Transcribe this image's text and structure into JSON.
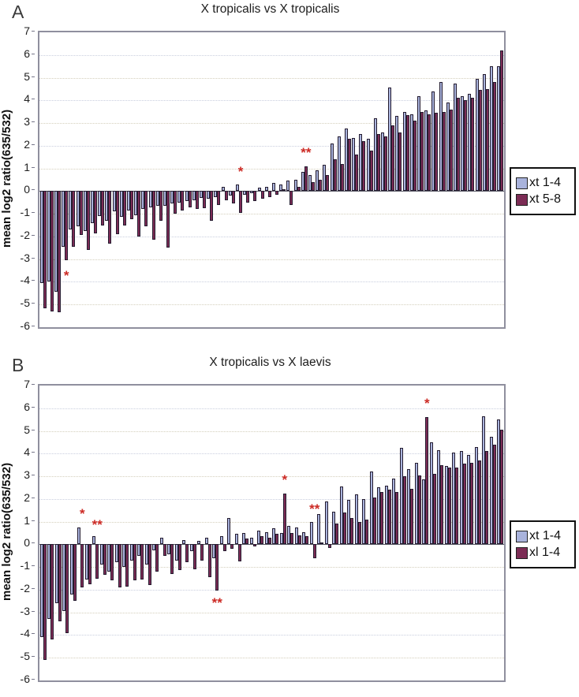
{
  "figure": {
    "panels": [
      {
        "letter": "A"
      },
      {
        "letter": "B"
      }
    ]
  },
  "chart_data": [
    {
      "type": "bar",
      "title": "X tropicalis vs X tropicalis",
      "ylabel": "mean log2 ratio(635/532)",
      "ylim": [
        -6,
        7
      ],
      "yticks": [
        7,
        6,
        5,
        4,
        3,
        2,
        1,
        0,
        -1,
        -2,
        -3,
        -4,
        -5,
        -6
      ],
      "grid": "horizontal-dotted",
      "legend_position": "right",
      "bars_sorted": "ascending by mean log2 ratio",
      "series": [
        {
          "name": "xt 1-4",
          "color": "#a9b3dc",
          "values": [
            -4.05,
            -4.0,
            -4.45,
            -2.45,
            -1.7,
            -1.55,
            -1.75,
            -1.4,
            -1.1,
            -1.3,
            -0.9,
            -1.15,
            -0.85,
            -1.05,
            -0.8,
            -0.7,
            -0.65,
            -0.65,
            -0.55,
            -0.5,
            -0.45,
            -0.4,
            -0.3,
            -0.35,
            -0.25,
            0.2,
            -0.2,
            0.3,
            -0.15,
            -0.1,
            0.15,
            0.2,
            0.35,
            0.3,
            0.45,
            0.5,
            0.85,
            0.7,
            0.9,
            1.15,
            2.1,
            2.4,
            2.75,
            2.35,
            2.5,
            2.3,
            3.2,
            2.6,
            4.55,
            3.3,
            3.5,
            3.4,
            4.2,
            3.55,
            4.4,
            4.8,
            3.9,
            4.75,
            4.2,
            4.3,
            4.95,
            5.15,
            5.5,
            5.5
          ]
        },
        {
          "name": "xt 5-8",
          "color": "#7c2c55",
          "values": [
            -5.15,
            -5.3,
            -5.35,
            -3.05,
            -2.45,
            -1.95,
            -2.6,
            -1.85,
            -1.5,
            -2.3,
            -1.9,
            -1.5,
            -1.25,
            -2.0,
            -1.55,
            -2.15,
            -1.3,
            -2.5,
            -1.0,
            -0.85,
            -0.7,
            -0.8,
            -0.75,
            -1.3,
            -0.6,
            -0.4,
            -0.55,
            -0.95,
            -0.5,
            -0.45,
            -0.35,
            -0.25,
            -0.15,
            0.1,
            -0.6,
            0.2,
            1.1,
            0.4,
            0.5,
            0.7,
            1.4,
            1.2,
            2.3,
            1.6,
            2.2,
            1.8,
            2.5,
            2.4,
            2.9,
            2.6,
            3.35,
            3.1,
            3.5,
            3.4,
            3.45,
            3.5,
            3.6,
            4.1,
            4.0,
            4.1,
            4.45,
            4.5,
            4.8,
            6.2
          ]
        }
      ],
      "annotations": [
        {
          "text": "*",
          "pair": 3,
          "y": -3.5,
          "placement": "below"
        },
        {
          "text": "*",
          "pair": 27,
          "y": 0.6,
          "placement": "above"
        },
        {
          "text": "**",
          "pair": 36,
          "y": 1.45,
          "placement": "above"
        }
      ]
    },
    {
      "type": "bar",
      "title": "X tropicalis vs X laevis",
      "ylabel": "mean log2 ratio(635/532)",
      "ylim": [
        -6,
        7
      ],
      "yticks": [
        7,
        6,
        5,
        4,
        3,
        2,
        1,
        0,
        -1,
        -2,
        -3,
        -4,
        -5,
        -6
      ],
      "grid": "horizontal-dotted",
      "legend_position": "right",
      "bars_sorted": "ascending by mean log2 ratio",
      "series": [
        {
          "name": "xt 1-4",
          "color": "#a9b3dc",
          "values": [
            -4.1,
            -3.3,
            -2.6,
            -2.95,
            -2.2,
            0.75,
            -1.55,
            0.35,
            -0.9,
            -1.2,
            -0.8,
            -1.0,
            -0.7,
            -0.5,
            -0.9,
            -0.25,
            0.3,
            -0.45,
            -0.7,
            0.2,
            -0.3,
            0.15,
            0.3,
            -0.6,
            0.35,
            1.15,
            0.45,
            0.5,
            0.3,
            0.6,
            0.55,
            0.7,
            0.5,
            0.8,
            0.75,
            0.55,
            1.0,
            1.35,
            1.9,
            1.45,
            2.55,
            1.95,
            2.2,
            2.0,
            3.2,
            2.5,
            2.6,
            2.9,
            4.25,
            3.3,
            3.6,
            2.85,
            4.5,
            4.15,
            3.45,
            4.05,
            4.1,
            3.95,
            4.3,
            5.65,
            4.75,
            5.5
          ]
        },
        {
          "name": "xl 1-4",
          "color": "#7c2c55",
          "values": [
            -5.1,
            -4.2,
            -3.4,
            -3.9,
            -2.5,
            -1.9,
            -1.75,
            -1.5,
            -1.35,
            -1.6,
            -1.9,
            -1.85,
            -1.6,
            -1.55,
            -1.8,
            -1.2,
            -0.5,
            -1.3,
            -1.15,
            -0.8,
            -1.1,
            -0.7,
            -1.45,
            -2.05,
            -0.3,
            -0.2,
            -0.75,
            0.25,
            -0.1,
            0.35,
            0.3,
            0.45,
            2.25,
            0.5,
            0.4,
            0.35,
            -0.6,
            0.1,
            -0.15,
            0.9,
            1.4,
            1.15,
            1.0,
            1.1,
            2.05,
            2.3,
            2.4,
            2.3,
            3.0,
            2.45,
            3.05,
            5.6,
            3.1,
            3.5,
            3.4,
            3.4,
            3.55,
            3.6,
            3.7,
            4.1,
            4.4,
            5.05
          ]
        }
      ],
      "annotations": [
        {
          "text": "*",
          "pair": 5,
          "y": 1.1,
          "placement": "above"
        },
        {
          "text": "**",
          "pair": 7,
          "y": 0.6,
          "placement": "above"
        },
        {
          "text": "**",
          "pair": 23,
          "y": -2.35,
          "placement": "below"
        },
        {
          "text": "*",
          "pair": 32,
          "y": 2.6,
          "placement": "above"
        },
        {
          "text": "**",
          "pair": 36,
          "y": 1.3,
          "placement": "above"
        },
        {
          "text": "*",
          "pair": 51,
          "y": 5.95,
          "placement": "above"
        }
      ]
    }
  ]
}
